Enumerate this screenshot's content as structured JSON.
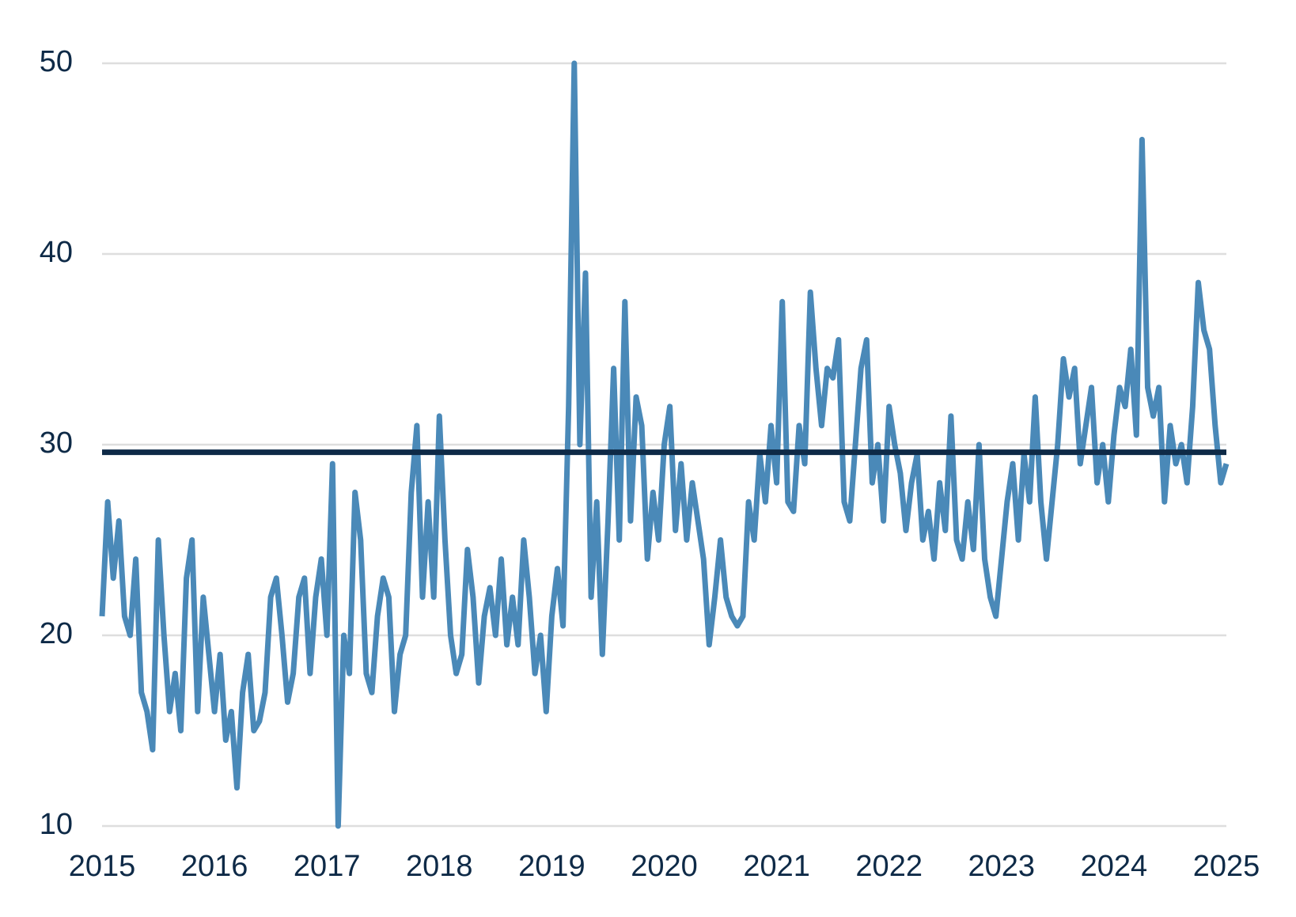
{
  "chart_data": {
    "type": "line",
    "x": [
      2015,
      2015.05,
      2015.1,
      2015.15,
      2015.2,
      2015.25,
      2015.3,
      2015.35,
      2015.4,
      2015.45,
      2015.5,
      2015.55,
      2015.6,
      2015.65,
      2015.7,
      2015.75,
      2015.8,
      2015.85,
      2015.9,
      2015.95,
      2016,
      2016.05,
      2016.1,
      2016.15,
      2016.2,
      2016.25,
      2016.3,
      2016.35,
      2016.4,
      2016.45,
      2016.5,
      2016.55,
      2016.6,
      2016.65,
      2016.7,
      2016.75,
      2016.8,
      2016.85,
      2016.9,
      2016.95,
      2017,
      2017.05,
      2017.1,
      2017.15,
      2017.2,
      2017.25,
      2017.3,
      2017.35,
      2017.4,
      2017.45,
      2017.5,
      2017.55,
      2017.6,
      2017.65,
      2017.7,
      2017.75,
      2017.8,
      2017.85,
      2017.9,
      2017.95,
      2018,
      2018.05,
      2018.1,
      2018.15,
      2018.2,
      2018.25,
      2018.3,
      2018.35,
      2018.4,
      2018.45,
      2018.5,
      2018.55,
      2018.6,
      2018.65,
      2018.7,
      2018.75,
      2018.8,
      2018.85,
      2018.9,
      2018.95,
      2019,
      2019.05,
      2019.1,
      2019.15,
      2019.2,
      2019.25,
      2019.3,
      2019.35,
      2019.4,
      2019.45,
      2019.5,
      2019.55,
      2019.6,
      2019.65,
      2019.7,
      2019.75,
      2019.8,
      2019.85,
      2019.9,
      2019.95,
      2020,
      2020.05,
      2020.1,
      2020.15,
      2020.2,
      2020.25,
      2020.3,
      2020.35,
      2020.4,
      2020.45,
      2020.5,
      2020.55,
      2020.6,
      2020.65,
      2020.7,
      2020.75,
      2020.8,
      2020.85,
      2020.9,
      2020.95,
      2021,
      2021.05,
      2021.1,
      2021.15,
      2021.2,
      2021.25,
      2021.3,
      2021.35,
      2021.4,
      2021.45,
      2021.5,
      2021.55,
      2021.6,
      2021.65,
      2021.7,
      2021.75,
      2021.8,
      2021.85,
      2021.9,
      2021.95,
      2022,
      2022.05,
      2022.1,
      2022.15,
      2022.2,
      2022.25,
      2022.3,
      2022.35,
      2022.4,
      2022.45,
      2022.5,
      2022.55,
      2022.6,
      2022.65,
      2022.7,
      2022.75,
      2022.8,
      2022.85,
      2022.9,
      2022.95,
      2023,
      2023.05,
      2023.1,
      2023.15,
      2023.2,
      2023.25,
      2023.3,
      2023.35,
      2023.4,
      2023.45,
      2023.5,
      2023.55,
      2023.6,
      2023.65,
      2023.7,
      2023.75,
      2023.8,
      2023.85,
      2023.9,
      2023.95,
      2024,
      2024.05,
      2024.1,
      2024.15,
      2024.2,
      2024.25,
      2024.3,
      2024.35,
      2024.4,
      2024.45,
      2024.5,
      2024.55,
      2024.6,
      2024.65,
      2024.7,
      2024.75,
      2024.8,
      2024.85,
      2024.9,
      2024.95,
      2025
    ],
    "series": [
      {
        "color": "#4a89b8",
        "values": [
          21,
          27,
          23,
          26,
          21,
          20,
          24,
          17,
          16,
          14,
          25,
          20,
          16,
          18,
          15,
          23,
          25,
          16,
          22,
          19,
          16,
          19,
          14.5,
          16,
          12,
          17,
          19,
          15,
          15.5,
          17,
          22,
          23,
          20,
          16.5,
          18,
          22,
          23,
          18,
          22,
          24,
          20,
          29,
          10,
          20,
          18,
          27.5,
          25,
          18,
          17,
          21,
          23,
          22,
          16,
          19,
          20,
          27.5,
          31,
          22,
          27,
          22,
          31.5,
          25,
          20,
          18,
          19,
          24.5,
          22,
          17.5,
          21,
          22.5,
          20,
          24,
          19.5,
          22,
          19.5,
          25,
          22,
          18,
          20,
          16,
          21,
          23.5,
          20.5,
          32,
          50,
          30,
          39,
          22,
          27,
          19,
          26,
          34,
          25,
          37.5,
          26,
          32.5,
          31,
          24,
          27.5,
          25,
          30,
          32,
          25.5,
          29,
          25,
          28,
          26,
          24,
          19.5,
          22,
          25,
          22,
          21,
          20.5,
          21,
          27,
          25,
          29.5,
          27,
          31,
          28,
          37.5,
          27,
          26.5,
          31,
          29,
          38,
          34,
          31,
          34,
          33.5,
          35.5,
          27,
          26,
          30,
          34,
          35.5,
          28,
          30,
          26,
          32,
          30,
          28.5,
          25.5,
          28,
          29.5,
          25,
          26.5,
          24,
          28,
          25.5,
          31.5,
          25,
          24,
          27,
          24.5,
          30,
          24,
          22,
          21,
          24,
          27,
          29,
          25,
          29.5,
          27,
          32.5,
          27,
          24,
          27,
          30,
          34.5,
          32.5,
          34,
          29,
          31,
          33,
          28,
          30,
          27,
          30.5,
          33,
          32,
          35,
          30.5,
          46,
          33,
          31.5,
          33,
          27,
          31,
          29,
          30,
          28,
          32,
          38.5,
          36,
          35,
          31,
          28,
          29
        ]
      }
    ],
    "xlim": [
      2015,
      2025
    ],
    "xticks": [
      2015,
      2016,
      2017,
      2018,
      2019,
      2020,
      2021,
      2022,
      2023,
      2024,
      2025
    ],
    "ylim": [
      10,
      50
    ],
    "yticks": [
      10,
      20,
      30,
      40,
      50
    ],
    "grid": true,
    "reference_line": {
      "value": 29.6,
      "color": "#0e2a47"
    }
  }
}
